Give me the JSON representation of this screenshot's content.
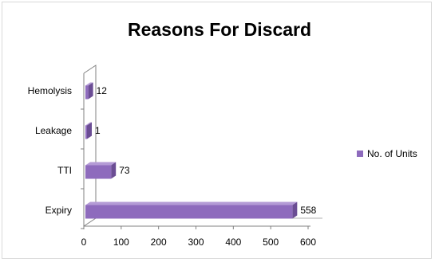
{
  "chart_data": {
    "type": "bar",
    "orientation": "horizontal",
    "style": "3d",
    "title": "Reasons For Discard",
    "xlabel": "",
    "ylabel": "",
    "categories": [
      "Hemolysis",
      "Leakage",
      "TTI",
      "Expiry"
    ],
    "series": [
      {
        "name": "No. of Units",
        "values": [
          12,
          1,
          73,
          558
        ],
        "color": "#8e6bbd"
      }
    ],
    "xlim": [
      0,
      600
    ],
    "xticks": [
      0,
      100,
      200,
      300,
      400,
      500,
      600
    ],
    "grid": false,
    "legend_position": "right",
    "data_labels": true
  }
}
